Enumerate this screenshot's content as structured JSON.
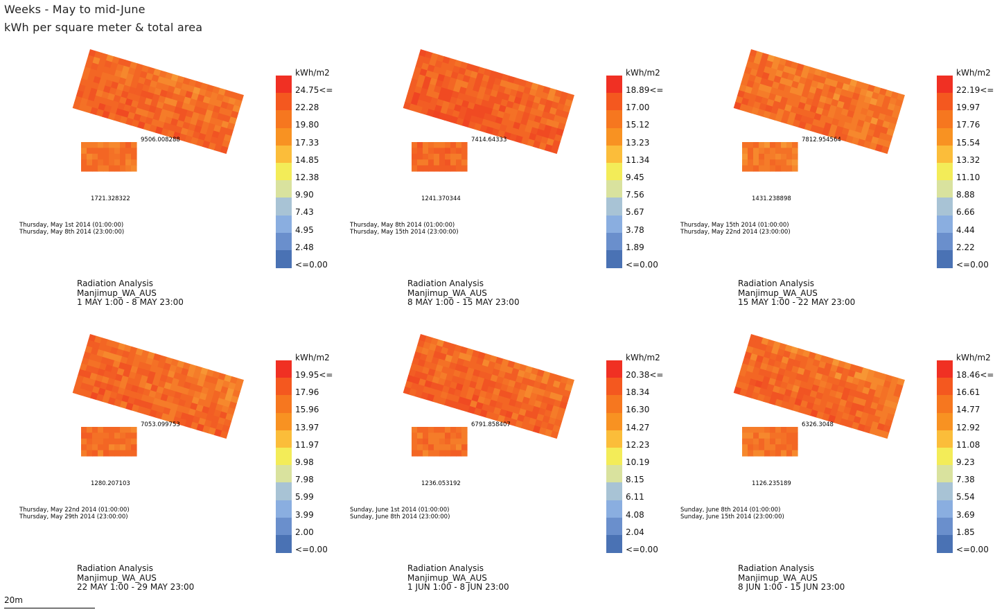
{
  "header": {
    "title": "Weeks - May to mid-June",
    "subtitle": "kWh per square meter & total area"
  },
  "scale_bar": {
    "label": "20m"
  },
  "legend_colors": [
    "#f03023",
    "#f4581f",
    "#f6771f",
    "#f89222",
    "#fbbd3a",
    "#f3ec58",
    "#d9e29e",
    "#a8c3d5",
    "#8aaee0",
    "#6a8fcc",
    "#4a72b4"
  ],
  "chart_data": [
    {
      "type": "heatmap",
      "area_large": "9506.008288",
      "area_small": "1721.328322",
      "dates": [
        "Thursday, May 1st 2014 (01:00:00)",
        "Thursday, May 8th 2014 (23:00:00)"
      ],
      "legend_unit": "kWh/m2",
      "legend_values": [
        "24.75<=",
        "22.28",
        "19.80",
        "17.33",
        "14.85",
        "12.38",
        "9.90",
        "7.43",
        "4.95",
        "2.48",
        "<=0.00"
      ],
      "footer": [
        "Radiation Analysis",
        "Manjimup_WA_AUS",
        "1 MAY 1:00 - 8 MAY 23:00"
      ]
    },
    {
      "type": "heatmap",
      "area_large": "7414.64333",
      "area_small": "1241.370344",
      "dates": [
        "Thursday, May 8th 2014 (01:00:00)",
        "Thursday, May 15th 2014 (23:00:00)"
      ],
      "legend_unit": "kWh/m2",
      "legend_values": [
        "18.89<=",
        "17.00",
        "15.12",
        "13.23",
        "11.34",
        "9.45",
        "7.56",
        "5.67",
        "3.78",
        "1.89",
        "<=0.00"
      ],
      "footer": [
        "Radiation Analysis",
        "Manjimup_WA_AUS",
        "8 MAY 1:00 - 15 MAY 23:00"
      ]
    },
    {
      "type": "heatmap",
      "area_large": "7812.954564",
      "area_small": "1431.238898",
      "dates": [
        "Thursday, May 15th 2014 (01:00:00)",
        "Thursday, May 22nd 2014 (23:00:00)"
      ],
      "legend_unit": "kWh/m2",
      "legend_values": [
        "22.19<=",
        "19.97",
        "17.76",
        "15.54",
        "13.32",
        "11.10",
        "8.88",
        "6.66",
        "4.44",
        "2.22",
        "<=0.00"
      ],
      "footer": [
        "Radiation Analysis",
        "Manjimup_WA_AUS",
        "15 MAY 1:00 - 22 MAY 23:00"
      ]
    },
    {
      "type": "heatmap",
      "area_large": "7053.099753",
      "area_small": "1280.207103",
      "dates": [
        "Thursday, May 22nd 2014 (01:00:00)",
        "Thursday, May 29th 2014 (23:00:00)"
      ],
      "legend_unit": "kWh/m2",
      "legend_values": [
        "19.95<=",
        "17.96",
        "15.96",
        "13.97",
        "11.97",
        "9.98",
        "7.98",
        "5.99",
        "3.99",
        "2.00",
        "<=0.00"
      ],
      "footer": [
        "Radiation Analysis",
        "Manjimup_WA_AUS",
        "22 MAY 1:00 - 29 MAY 23:00"
      ]
    },
    {
      "type": "heatmap",
      "area_large": "6791.858407",
      "area_small": "1236.053192",
      "dates": [
        "Sunday, June 1st 2014 (01:00:00)",
        "Sunday, June 8th 2014 (23:00:00)"
      ],
      "legend_unit": "kWh/m2",
      "legend_values": [
        "20.38<=",
        "18.34",
        "16.30",
        "14.27",
        "12.23",
        "10.19",
        "8.15",
        "6.11",
        "4.08",
        "2.04",
        "<=0.00"
      ],
      "footer": [
        "Radiation Analysis",
        "Manjimup_WA_AUS",
        "1 JUN 1:00 - 8 JUN 23:00"
      ]
    },
    {
      "type": "heatmap",
      "area_large": "6326.3048",
      "area_small": "1126.235189",
      "dates": [
        "Sunday, June 8th 2014 (01:00:00)",
        "Sunday, June 15th 2014 (23:00:00)"
      ],
      "legend_unit": "kWh/m2",
      "legend_values": [
        "18.46<=",
        "16.61",
        "14.77",
        "12.92",
        "11.08",
        "9.23",
        "7.38",
        "5.54",
        "3.69",
        "1.85",
        "<=0.00"
      ],
      "footer": [
        "Radiation Analysis",
        "Manjimup_WA_AUS",
        "8 JUN 1:00 - 15 JUN 23:00"
      ]
    }
  ]
}
